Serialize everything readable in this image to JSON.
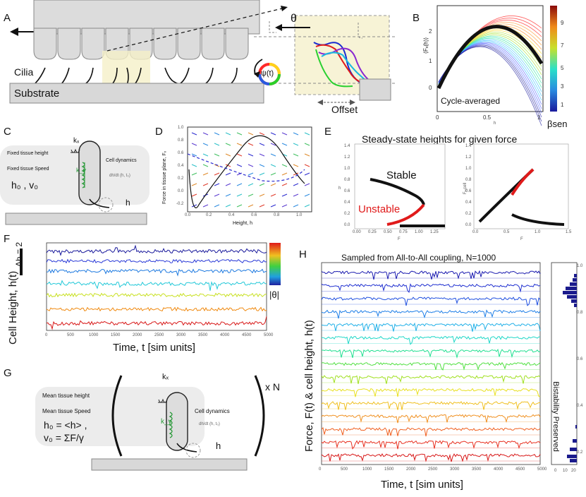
{
  "panelA": {
    "label": "A",
    "cilia_label": "Cilia",
    "substrate_label": "Substrate",
    "theta_label": "θ",
    "psi_label": "ψ(t)",
    "offset_label": "Offset"
  },
  "panelB": {
    "label": "B",
    "ylabel": "⟨Fₓ(h)⟩",
    "annotation": "Cycle-averaged",
    "xlabel": "h",
    "colorbar_label": "βsen",
    "colorbar_ticks": [
      "9",
      "7",
      "5",
      "3",
      "1"
    ],
    "yticks": [
      "2",
      "1",
      "0"
    ],
    "xticks": [
      "0",
      "0.5",
      "1"
    ],
    "curve_colors": [
      "#ff1a1a",
      "#ff8c1a",
      "#ffd21a",
      "#a6e22e",
      "#2ee6a6",
      "#2ebcff",
      "#4a5cff",
      "#1a1a9c"
    ]
  },
  "panelC": {
    "label": "C",
    "kx": "kₓ",
    "ky": "k_y",
    "fixed_height": "Fixed tissue height",
    "fixed_speed": "Fixed tissue Speed",
    "hv": "h₀ , v₀",
    "cell_dynamics": "Cell dynamics",
    "dhdt": "dh/dt (h, t₀)",
    "h": "h"
  },
  "panelD": {
    "label": "D",
    "ylabel": "Force in tissue plane, Fₓ",
    "xlabel": "Height, h",
    "xticks": [
      "0.0",
      "0.2",
      "0.4",
      "0.6",
      "0.8",
      "1.0"
    ],
    "yticks": [
      "1.0",
      "0.8",
      "0.6",
      "0.4",
      "0.2",
      "0.0",
      "-0.2"
    ]
  },
  "panelE": {
    "label": "E",
    "title": "Steady-state heights for given force",
    "stable": "Stable",
    "unstable": "Unstable",
    "left_yticks": [
      "1.4",
      "1.2",
      "1.0",
      "0.8",
      "0.6",
      "0.4",
      "0.2",
      "0.0"
    ],
    "left_xticks": [
      "0.00",
      "0.25",
      "0.50",
      "0.75",
      "1.00",
      "1.25"
    ],
    "right_yticks": [
      "1.4",
      "1.2",
      "1.0",
      "0.8",
      "0.6",
      "0.4",
      "0.2",
      "0.0"
    ],
    "right_xticks": [
      "0.0",
      "0.5",
      "1.0",
      "1.5"
    ],
    "left_ylabel": "h",
    "right_ylabel": "Fₓ,cell",
    "xlabel": "F"
  },
  "panelF": {
    "label": "F",
    "scale": "Δh = 2",
    "ylabel": "Cell Height, h(t)",
    "xlabel": "Time, t [sim units]",
    "colorbar_label": "|θ|",
    "xticks": [
      "0",
      "500",
      "1000",
      "1500",
      "2000",
      "2500",
      "3000",
      "3500",
      "4000",
      "4500",
      "5000"
    ],
    "trace_colors": [
      "#1a1a9c",
      "#2a3ad8",
      "#1e7ae0",
      "#20c8d8",
      "#c8e020",
      "#f08a10",
      "#d81818"
    ]
  },
  "panelG": {
    "label": "G",
    "kx": "kₓ",
    "ky": "k_y",
    "mean_height": "Mean tissue height",
    "mean_speed": "Mean tissue Speed",
    "h_eq": "h₀ = <h> ,",
    "v_eq": "v₀ = ΣF/γ",
    "cell_dynamics": "Cell dynamics",
    "dhdt": "dh/dt (h, t₀)",
    "h": "h",
    "times_n": "x N"
  },
  "panelH": {
    "label": "H",
    "title": "Sampled from All-to-All coupling, N=1000",
    "ylabel": "Force, F(t)  & cell height, h(t)",
    "xlabel": "Time, t [sim units]",
    "xticks": [
      "0",
      "500",
      "1000",
      "1500",
      "2000",
      "2500",
      "3000",
      "3500",
      "4000",
      "4500",
      "5000"
    ],
    "side_label": "Bistability Preserved",
    "side_ticks": [
      "1.0",
      "0.8",
      "0.6",
      "0.4",
      "0.2"
    ],
    "side_xticks": [
      "0",
      "10",
      "20"
    ],
    "trace_colors": [
      "#1a1ab0",
      "#2030d0",
      "#2050e0",
      "#2080e8",
      "#20b0e8",
      "#20d8c8",
      "#20e090",
      "#50e040",
      "#a0e020",
      "#e8e020",
      "#f0c020",
      "#f09020",
      "#f06020",
      "#e83020",
      "#d81818"
    ]
  }
}
